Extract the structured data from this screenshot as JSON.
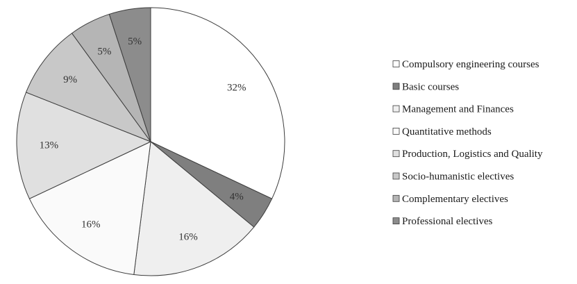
{
  "chart_data": {
    "type": "pie",
    "title": "",
    "series": [
      {
        "name": "Compulsory engineering courses",
        "value": 32,
        "label": "32%",
        "color": "#ffffff"
      },
      {
        "name": "Basic courses",
        "value": 4,
        "label": "4%",
        "color": "#7f7f7f"
      },
      {
        "name": "Management and Finances",
        "value": 16,
        "label": "16%",
        "color": "#efefef"
      },
      {
        "name": "Quantitative methods",
        "value": 16,
        "label": "16%",
        "color": "#fafafa"
      },
      {
        "name": "Production, Logistics and Quality",
        "value": 13,
        "label": "13%",
        "color": "#e0e0e0"
      },
      {
        "name": "Socio-humanistic electives",
        "value": 9,
        "label": "9%",
        "color": "#c8c8c8"
      },
      {
        "name": "Complementary electives",
        "value": 5,
        "label": "5%",
        "color": "#b5b5b5"
      },
      {
        "name": "Professional electives",
        "value": 5,
        "label": "5%",
        "color": "#8c8c8c"
      }
    ],
    "start_angle_deg": 0,
    "direction": "clockwise",
    "legend_position": "right"
  }
}
